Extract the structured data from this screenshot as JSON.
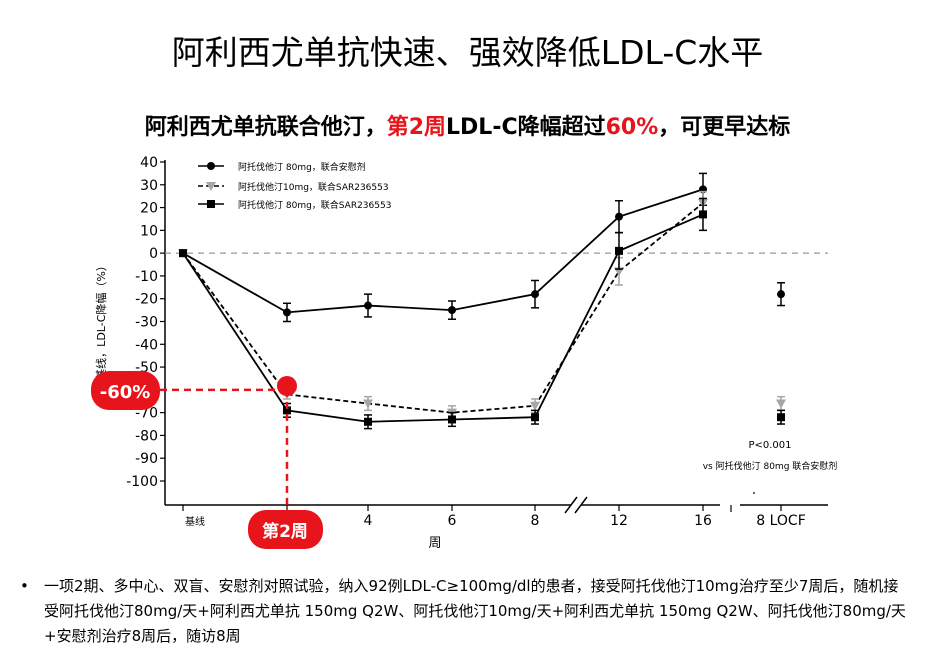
{
  "page": {
    "title": "阿利西尤单抗快速、强效降低LDL-C水平",
    "subtitle_parts": [
      "阿利西尤单抗联合他汀，",
      "第2周",
      "LDL-C降幅超过",
      "60%",
      "，可更早达标"
    ],
    "bullet": "一项2期、多中心、双盲、安慰剂对照试验，纳入92例LDL-C≥100mg/dl的患者，接受阿托伐他汀10mg治疗至少7周后，随机接受阿托伐他汀80mg/天+阿利西尤单抗 150mg Q2W、阿托伐他汀10mg/天+阿利西尤单抗 150mg Q2W、阿托伐他汀80mg/天+安慰剂治疗8周后，随访8周",
    "callout_percent": "-60%",
    "callout_week": "第2周",
    "pvalue": "P<0.001",
    "pvalue_note": "vs 阿托伐他汀 80mg 联合安慰剂",
    "colors": {
      "red": "#e8141b",
      "gray_marker": "#a6a6a6",
      "dash_ref": "#999999"
    }
  },
  "chart_data": {
    "type": "line",
    "xlabel": "周",
    "ylabel": "基线，LDL-C降幅（%）",
    "ylim": [
      -100,
      40
    ],
    "yticks": [
      40,
      30,
      20,
      10,
      0,
      -10,
      -20,
      -30,
      -40,
      -50,
      -60,
      -70,
      -80,
      -90,
      -100
    ],
    "x_categories": [
      "基线",
      "4",
      "6",
      "8",
      "12",
      "16",
      "8 LOCF"
    ],
    "reference_line_y": 0,
    "series": [
      {
        "name": "阿托伐他汀 80mg，联合安慰剂",
        "marker": "circle",
        "line": "solid",
        "color": "#000000",
        "points": [
          {
            "week": 0,
            "value": 0,
            "err": 0
          },
          {
            "week": 2,
            "value": -26,
            "err": 4
          },
          {
            "week": 4,
            "value": -23,
            "err": 5
          },
          {
            "week": 6,
            "value": -25,
            "err": 4
          },
          {
            "week": 8,
            "value": -18,
            "err": 6
          },
          {
            "week": 12,
            "value": 16,
            "err": 7
          },
          {
            "week": 16,
            "value": 28,
            "err": 7
          }
        ],
        "locf": {
          "value": -18,
          "err": 5
        }
      },
      {
        "name": "阿托伐他汀10mg，联合SAR236553",
        "marker": "triangle",
        "line": "dashed",
        "color": "#a6a6a6",
        "points": [
          {
            "week": 0,
            "value": 0,
            "err": 0
          },
          {
            "week": 2,
            "value": -62,
            "err": 2
          },
          {
            "week": 4,
            "value": -66,
            "err": 3
          },
          {
            "week": 6,
            "value": -70,
            "err": 3
          },
          {
            "week": 8,
            "value": -67,
            "err": 3
          },
          {
            "week": 12,
            "value": -8,
            "err": 6
          },
          {
            "week": 16,
            "value": 22,
            "err": 5
          }
        ],
        "locf": {
          "value": -66,
          "err": 3
        }
      },
      {
        "name": "阿托伐他汀 80mg，联合SAR236553",
        "marker": "square",
        "line": "solid",
        "color": "#000000",
        "points": [
          {
            "week": 0,
            "value": 0,
            "err": 0
          },
          {
            "week": 2,
            "value": -69,
            "err": 3
          },
          {
            "week": 4,
            "value": -74,
            "err": 3
          },
          {
            "week": 6,
            "value": -73,
            "err": 3
          },
          {
            "week": 8,
            "value": -72,
            "err": 3
          },
          {
            "week": 12,
            "value": 1,
            "err": 8
          },
          {
            "week": 16,
            "value": 17,
            "err": 7
          }
        ],
        "locf": {
          "value": -72,
          "err": 3
        }
      }
    ]
  }
}
